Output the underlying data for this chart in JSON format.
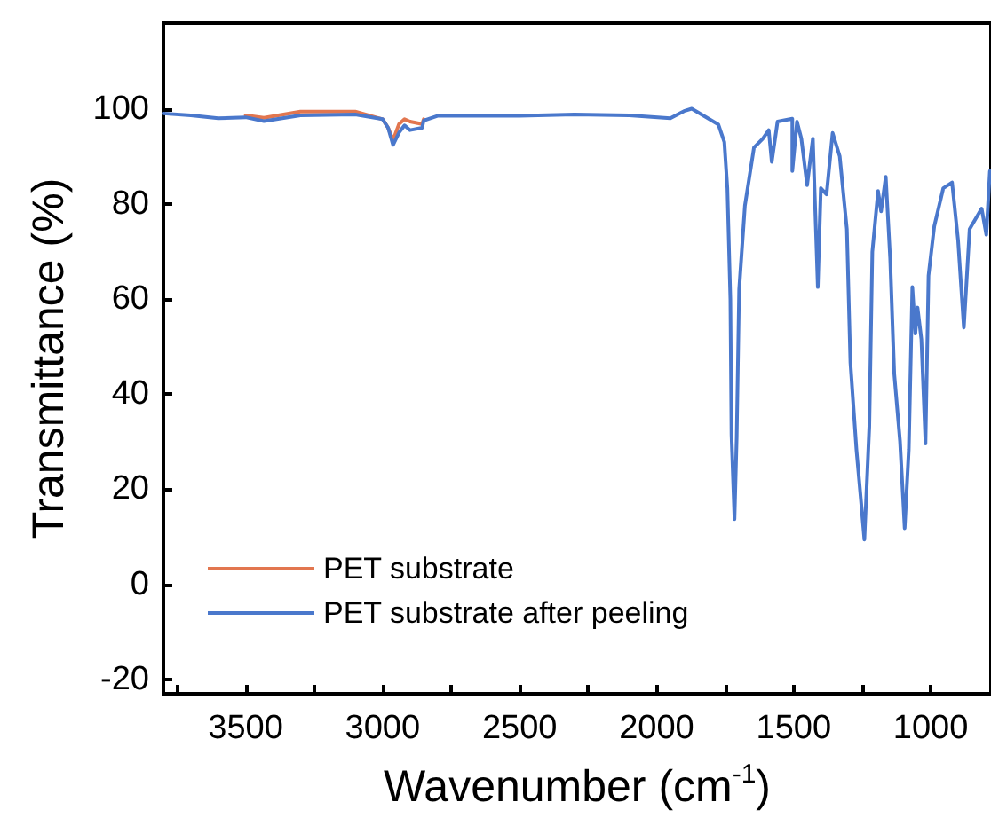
{
  "chart_data": {
    "type": "line",
    "xlabel": "Wavenumber (cm$^{-1}$)",
    "ylabel": "Transmittance (%)",
    "x": [
      3800,
      3700,
      3600,
      3500,
      3433,
      3300,
      3100,
      3000,
      2980,
      2962,
      2940,
      2920,
      2900,
      2856,
      2850,
      2800,
      2500,
      2300,
      2100,
      1950,
      1900,
      1872,
      1775,
      1753,
      1742,
      1731,
      1727,
      1716,
      1708,
      1699,
      1678,
      1645,
      1613,
      1591,
      1580,
      1559,
      1505,
      1505,
      1488,
      1472,
      1451,
      1430,
      1412,
      1401,
      1380,
      1358,
      1332,
      1306,
      1293,
      1271,
      1256,
      1242,
      1224,
      1213,
      1192,
      1181,
      1164,
      1148,
      1133,
      1112,
      1095,
      1080,
      1067,
      1056,
      1048,
      1034,
      1019,
      1008,
      987,
      954,
      922,
      900,
      879,
      858,
      814,
      797,
      784
    ],
    "series": [
      {
        "name": "PET substrate",
        "color": "#e2764f",
        "values": [
          null,
          null,
          null,
          98.6,
          98.1,
          99.4,
          99.4,
          97.8,
          96,
          93.4,
          96.8,
          97.8,
          97.3,
          96.8,
          97.8,
          null,
          null,
          null,
          null,
          null,
          null,
          null,
          null,
          null,
          null,
          null,
          null,
          null,
          null,
          null,
          null,
          null,
          null,
          null,
          null,
          null,
          null,
          null,
          null,
          null,
          null,
          null,
          null,
          null,
          null,
          null,
          null,
          null,
          null,
          null,
          null,
          null,
          null,
          null,
          null,
          null,
          null,
          null,
          null,
          null,
          null,
          null,
          null,
          null,
          null,
          null,
          null,
          null,
          null,
          null,
          null,
          null,
          null,
          null,
          null,
          null,
          null
        ]
      },
      {
        "name": "PET substrate after peeling",
        "color": "#4a78cc",
        "values": [
          99,
          98.6,
          98,
          98.2,
          97.4,
          98.6,
          98.8,
          97.8,
          96,
          92.4,
          95,
          96.5,
          95.5,
          96,
          97.5,
          98.5,
          98.5,
          98.8,
          98.6,
          98,
          99.5,
          100,
          96.7,
          93,
          83.3,
          60,
          31.5,
          13.7,
          30.8,
          62,
          79.6,
          91.8,
          93.7,
          95.5,
          88.8,
          97.3,
          97.9,
          86.9,
          97.3,
          93.7,
          83.9,
          93.7,
          62.5,
          83.3,
          82,
          94.9,
          90,
          74.7,
          46.6,
          28.3,
          18.6,
          9.4,
          33.2,
          69.9,
          82.7,
          78.4,
          85.7,
          68.6,
          44.2,
          30.1,
          11.8,
          28.3,
          62.5,
          52.7,
          58.2,
          51.5,
          29.6,
          64.9,
          75.3,
          83.3,
          84.5,
          72.3,
          54,
          74.7,
          79,
          73.5,
          86.9
        ]
      }
    ],
    "xlim": [
      3800,
      780
    ],
    "ylim": [
      -23,
      118
    ],
    "xticks": [
      {
        "value": 3750,
        "label": null
      },
      3500,
      {
        "value": 3250,
        "label": null
      },
      3000,
      {
        "value": 2750,
        "label": null
      },
      2500,
      {
        "value": 2250,
        "label": null
      },
      2000,
      {
        "value": 1750,
        "label": null
      },
      1500,
      {
        "value": 1250,
        "label": null
      },
      1000
    ],
    "yticks": [
      -20,
      0,
      20,
      40,
      60,
      80,
      100
    ],
    "grid": false,
    "legend": "bottom left",
    "marker": "none",
    "line_style": "solid"
  }
}
